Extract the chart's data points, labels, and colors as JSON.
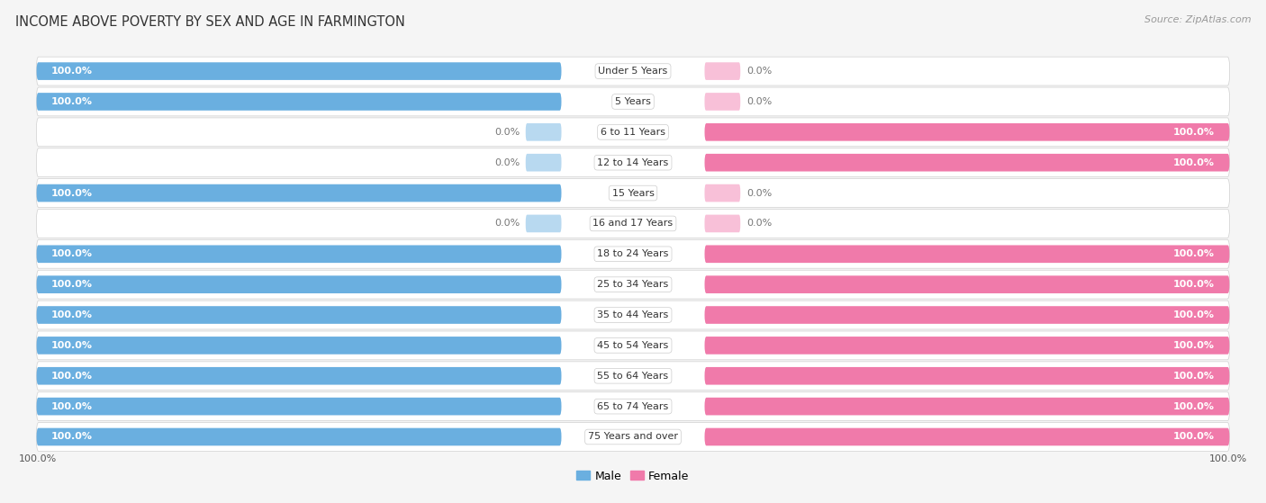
{
  "title": "INCOME ABOVE POVERTY BY SEX AND AGE IN FARMINGTON",
  "source": "Source: ZipAtlas.com",
  "categories": [
    "Under 5 Years",
    "5 Years",
    "6 to 11 Years",
    "12 to 14 Years",
    "15 Years",
    "16 and 17 Years",
    "18 to 24 Years",
    "25 to 34 Years",
    "35 to 44 Years",
    "45 to 54 Years",
    "55 to 64 Years",
    "65 to 74 Years",
    "75 Years and over"
  ],
  "male": [
    100.0,
    100.0,
    0.0,
    0.0,
    100.0,
    0.0,
    100.0,
    100.0,
    100.0,
    100.0,
    100.0,
    100.0,
    100.0
  ],
  "female": [
    0.0,
    0.0,
    100.0,
    100.0,
    0.0,
    0.0,
    100.0,
    100.0,
    100.0,
    100.0,
    100.0,
    100.0,
    100.0
  ],
  "male_color": "#6aafe0",
  "female_color": "#f07aaa",
  "male_zero_color": "#b8d9f0",
  "female_zero_color": "#f8c0d8",
  "row_bg_color": "#f0f0f0",
  "bar_track_color": "#e8e8e8",
  "bg_color": "#f5f5f5",
  "title_fontsize": 10.5,
  "source_fontsize": 8,
  "val_fontsize": 8,
  "cat_fontsize": 8,
  "legend_fontsize": 9,
  "legend_label_male": "Male",
  "legend_label_female": "Female"
}
